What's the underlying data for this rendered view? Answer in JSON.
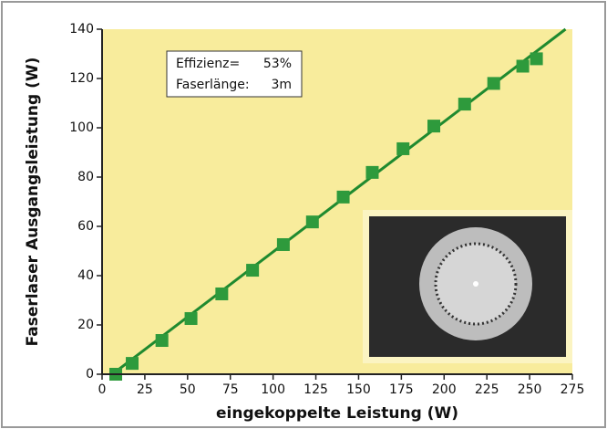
{
  "chart_data": {
    "type": "scatter",
    "x_label": "eingekoppelte Leistung (W)",
    "y_label": "Faserlaser Ausgangsleistung (W)",
    "annotations": [
      [
        "Effizienz=",
        "53%"
      ],
      [
        "Faserlänge:",
        "3m"
      ]
    ],
    "x": [
      8,
      17.6,
      35,
      52,
      70,
      88,
      106,
      123,
      141,
      158,
      176,
      194,
      212,
      229,
      246,
      254
    ],
    "values": [
      0,
      4.4,
      13.7,
      22.6,
      32.6,
      42.2,
      52.6,
      61.8,
      71.9,
      81.9,
      91.5,
      100.7,
      109.6,
      118,
      125,
      128
    ],
    "color": "#2e9a3c",
    "fit": {
      "x": [
        6,
        271
      ],
      "values": [
        0,
        140
      ],
      "color": "#1f8a2f"
    },
    "xlim": [
      0,
      275
    ],
    "xticks": [
      0,
      25,
      50,
      75,
      100,
      125,
      150,
      175,
      200,
      225,
      250,
      275
    ],
    "ylim": [
      0,
      140
    ],
    "yticks": [
      0,
      20,
      40,
      60,
      80,
      100,
      120,
      140
    ],
    "background": "#f8ec9c"
  }
}
